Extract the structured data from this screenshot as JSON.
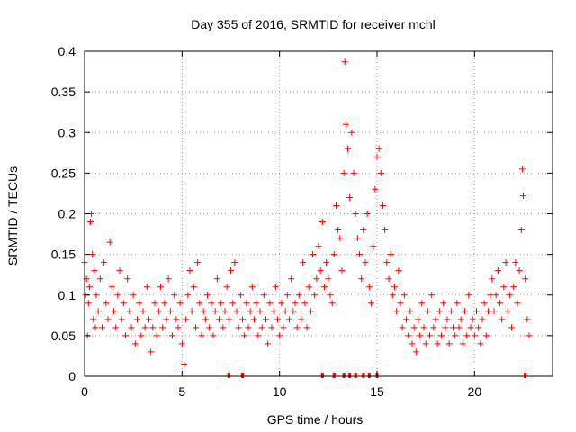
{
  "chart_data": {
    "type": "scatter",
    "title": "Day 355 of 2016, SRMTID for receiver mchl",
    "xlabel": "GPS time / hours",
    "ylabel": "SRMTID / TECUs",
    "xlim": [
      0,
      24
    ],
    "ylim": [
      0,
      0.4
    ],
    "xticks": [
      0,
      5,
      10,
      15,
      20
    ],
    "xtick_labels": [
      "0",
      "5",
      "10",
      "15",
      "20"
    ],
    "yticks": [
      0,
      0.05,
      0.1,
      0.15,
      0.2,
      0.25,
      0.3,
      0.35,
      0.4
    ],
    "ytick_labels": [
      "0",
      "0.05",
      "0.1",
      "0.15",
      "0.2",
      "0.25",
      "0.3",
      "0.35",
      "0.4"
    ],
    "grid": true,
    "marker": "+",
    "colors": {
      "points": "#ff0000",
      "grid": "#a0a0a0",
      "axes": "#000000"
    },
    "series": [
      {
        "name": "SRMTID",
        "points": [
          [
            0.0,
            0.14
          ],
          [
            0.05,
            0.1
          ],
          [
            0.1,
            0.12
          ],
          [
            0.15,
            0.05
          ],
          [
            0.2,
            0.09
          ],
          [
            0.25,
            0.11
          ],
          [
            0.3,
            0.19
          ],
          [
            0.35,
            0.2
          ],
          [
            0.4,
            0.15
          ],
          [
            0.45,
            0.07
          ],
          [
            0.5,
            0.13
          ],
          [
            0.55,
            0.06
          ],
          [
            0.6,
            0.1
          ],
          [
            0.7,
            0.08
          ],
          [
            0.8,
            0.12
          ],
          [
            0.9,
            0.06
          ],
          [
            1.0,
            0.14
          ],
          [
            1.1,
            0.09
          ],
          [
            1.2,
            0.07
          ],
          [
            1.3,
            0.165
          ],
          [
            1.4,
            0.11
          ],
          [
            1.5,
            0.08
          ],
          [
            1.6,
            0.06
          ],
          [
            1.7,
            0.1
          ],
          [
            1.8,
            0.13
          ],
          [
            1.9,
            0.07
          ],
          [
            2.0,
            0.09
          ],
          [
            2.1,
            0.05
          ],
          [
            2.2,
            0.12
          ],
          [
            2.3,
            0.08
          ],
          [
            2.4,
            0.06
          ],
          [
            2.5,
            0.1
          ],
          [
            2.6,
            0.04
          ],
          [
            2.7,
            0.07
          ],
          [
            2.8,
            0.09
          ],
          [
            2.9,
            0.05
          ],
          [
            3.0,
            0.08
          ],
          [
            3.1,
            0.06
          ],
          [
            3.2,
            0.11
          ],
          [
            3.3,
            0.07
          ],
          [
            3.4,
            0.03
          ],
          [
            3.5,
            0.06
          ],
          [
            3.6,
            0.09
          ],
          [
            3.7,
            0.05
          ],
          [
            3.8,
            0.08
          ],
          [
            3.9,
            0.11
          ],
          [
            4.0,
            0.06
          ],
          [
            4.1,
            0.09
          ],
          [
            4.2,
            0.07
          ],
          [
            4.3,
            0.12
          ],
          [
            4.4,
            0.08
          ],
          [
            4.5,
            0.05
          ],
          [
            4.6,
            0.1
          ],
          [
            4.7,
            0.07
          ],
          [
            4.8,
            0.06
          ],
          [
            4.9,
            0.09
          ],
          [
            5.0,
            0.04
          ],
          [
            5.1,
            0.015
          ],
          [
            5.2,
            0.07
          ],
          [
            5.3,
            0.1
          ],
          [
            5.4,
            0.13
          ],
          [
            5.5,
            0.08
          ],
          [
            5.6,
            0.11
          ],
          [
            5.7,
            0.06
          ],
          [
            5.8,
            0.14
          ],
          [
            5.9,
            0.09
          ],
          [
            6.0,
            0.05
          ],
          [
            6.1,
            0.08
          ],
          [
            6.2,
            0.07
          ],
          [
            6.3,
            0.1
          ],
          [
            6.4,
            0.06
          ],
          [
            6.5,
            0.09
          ],
          [
            6.6,
            0.05
          ],
          [
            6.7,
            0.08
          ],
          [
            6.8,
            0.12
          ],
          [
            6.9,
            0.07
          ],
          [
            7.0,
            0.09
          ],
          [
            7.1,
            0.06
          ],
          [
            7.2,
            0.08
          ],
          [
            7.3,
            0.11
          ],
          [
            7.4,
            0.07
          ],
          [
            7.5,
            0.13
          ],
          [
            7.6,
            0.09
          ],
          [
            7.7,
            0.14
          ],
          [
            7.8,
            0.08
          ],
          [
            7.9,
            0.06
          ],
          [
            8.0,
            0.1
          ],
          [
            8.1,
            0.07
          ],
          [
            8.2,
            0.05
          ],
          [
            8.3,
            0.09
          ],
          [
            8.4,
            0.06
          ],
          [
            8.5,
            0.08
          ],
          [
            8.6,
            0.11
          ],
          [
            8.7,
            0.07
          ],
          [
            8.8,
            0.09
          ],
          [
            8.9,
            0.05
          ],
          [
            9.0,
            0.08
          ],
          [
            9.1,
            0.06
          ],
          [
            9.2,
            0.1
          ],
          [
            9.3,
            0.07
          ],
          [
            9.4,
            0.04
          ],
          [
            9.5,
            0.09
          ],
          [
            9.6,
            0.06
          ],
          [
            9.7,
            0.08
          ],
          [
            9.8,
            0.11
          ],
          [
            9.9,
            0.07
          ],
          [
            10.0,
            0.05
          ],
          [
            10.1,
            0.09
          ],
          [
            10.2,
            0.06
          ],
          [
            10.3,
            0.08
          ],
          [
            10.4,
            0.1
          ],
          [
            10.5,
            0.07
          ],
          [
            10.6,
            0.12
          ],
          [
            10.7,
            0.08
          ],
          [
            10.8,
            0.09
          ],
          [
            10.9,
            0.06
          ],
          [
            11.0,
            0.1
          ],
          [
            11.1,
            0.07
          ],
          [
            11.2,
            0.14
          ],
          [
            11.3,
            0.09
          ],
          [
            11.4,
            0.06
          ],
          [
            11.5,
            0.11
          ],
          [
            11.6,
            0.08
          ],
          [
            11.7,
            0.15
          ],
          [
            11.8,
            0.1
          ],
          [
            11.9,
            0.12
          ],
          [
            12.0,
            0.16
          ],
          [
            12.1,
            0.13
          ],
          [
            12.2,
            0.19
          ],
          [
            12.3,
            0.11
          ],
          [
            12.4,
            0.14
          ],
          [
            12.5,
            0.12
          ],
          [
            12.6,
            0.1
          ],
          [
            12.7,
            0.09
          ],
          [
            12.8,
            0.15
          ],
          [
            12.9,
            0.21
          ],
          [
            13.0,
            0.18
          ],
          [
            13.1,
            0.17
          ],
          [
            13.2,
            0.13
          ],
          [
            13.3,
            0.25
          ],
          [
            13.35,
            0.387
          ],
          [
            13.4,
            0.31
          ],
          [
            13.5,
            0.28
          ],
          [
            13.6,
            0.22
          ],
          [
            13.7,
            0.3
          ],
          [
            13.8,
            0.25
          ],
          [
            13.9,
            0.2
          ],
          [
            14.0,
            0.17
          ],
          [
            14.1,
            0.15
          ],
          [
            14.2,
            0.12
          ],
          [
            14.3,
            0.18
          ],
          [
            14.4,
            0.14
          ],
          [
            14.5,
            0.2
          ],
          [
            14.6,
            0.11
          ],
          [
            14.7,
            0.09
          ],
          [
            14.8,
            0.16
          ],
          [
            14.9,
            0.23
          ],
          [
            15.0,
            0.27
          ],
          [
            15.1,
            0.28
          ],
          [
            15.2,
            0.25
          ],
          [
            15.3,
            0.21
          ],
          [
            15.4,
            0.18
          ],
          [
            15.5,
            0.14
          ],
          [
            15.6,
            0.12
          ],
          [
            15.7,
            0.15
          ],
          [
            15.8,
            0.1
          ],
          [
            15.9,
            0.11
          ],
          [
            16.0,
            0.08
          ],
          [
            16.1,
            0.13
          ],
          [
            16.2,
            0.09
          ],
          [
            16.3,
            0.06
          ],
          [
            16.4,
            0.1
          ],
          [
            16.5,
            0.07
          ],
          [
            16.6,
            0.05
          ],
          [
            16.7,
            0.08
          ],
          [
            16.8,
            0.04
          ],
          [
            16.9,
            0.06
          ],
          [
            17.0,
            0.03
          ],
          [
            17.1,
            0.07
          ],
          [
            17.2,
            0.05
          ],
          [
            17.3,
            0.09
          ],
          [
            17.4,
            0.06
          ],
          [
            17.5,
            0.04
          ],
          [
            17.6,
            0.08
          ],
          [
            17.7,
            0.05
          ],
          [
            17.8,
            0.1
          ],
          [
            17.9,
            0.06
          ],
          [
            18.0,
            0.07
          ],
          [
            18.1,
            0.04
          ],
          [
            18.2,
            0.08
          ],
          [
            18.3,
            0.05
          ],
          [
            18.4,
            0.09
          ],
          [
            18.5,
            0.06
          ],
          [
            18.6,
            0.07
          ],
          [
            18.7,
            0.04
          ],
          [
            18.8,
            0.08
          ],
          [
            18.9,
            0.06
          ],
          [
            19.0,
            0.05
          ],
          [
            19.1,
            0.09
          ],
          [
            19.2,
            0.06
          ],
          [
            19.3,
            0.07
          ],
          [
            19.4,
            0.04
          ],
          [
            19.5,
            0.08
          ],
          [
            19.6,
            0.05
          ],
          [
            19.7,
            0.1
          ],
          [
            19.8,
            0.06
          ],
          [
            19.9,
            0.07
          ],
          [
            20.0,
            0.05
          ],
          [
            20.1,
            0.08
          ],
          [
            20.2,
            0.06
          ],
          [
            20.3,
            0.04
          ],
          [
            20.4,
            0.07
          ],
          [
            20.5,
            0.09
          ],
          [
            20.6,
            0.05
          ],
          [
            20.7,
            0.08
          ],
          [
            20.8,
            0.1
          ],
          [
            20.9,
            0.12
          ],
          [
            21.0,
            0.08
          ],
          [
            21.1,
            0.1
          ],
          [
            21.2,
            0.13
          ],
          [
            21.3,
            0.09
          ],
          [
            21.4,
            0.07
          ],
          [
            21.5,
            0.11
          ],
          [
            21.6,
            0.14
          ],
          [
            21.7,
            0.08
          ],
          [
            21.8,
            0.1
          ],
          [
            21.9,
            0.06
          ],
          [
            22.0,
            0.11
          ],
          [
            22.1,
            0.14
          ],
          [
            22.2,
            0.09
          ],
          [
            22.3,
            0.13
          ],
          [
            22.4,
            0.18
          ],
          [
            22.45,
            0.255
          ],
          [
            22.5,
            0.222
          ],
          [
            22.6,
            0.12
          ],
          [
            22.7,
            0.07
          ],
          [
            22.8,
            0.05
          ]
        ]
      }
    ],
    "zero_markers_x": [
      7.4,
      8.1,
      12.2,
      12.8,
      13.3,
      13.6,
      13.9,
      14.3,
      14.6,
      15.0,
      22.6
    ]
  }
}
